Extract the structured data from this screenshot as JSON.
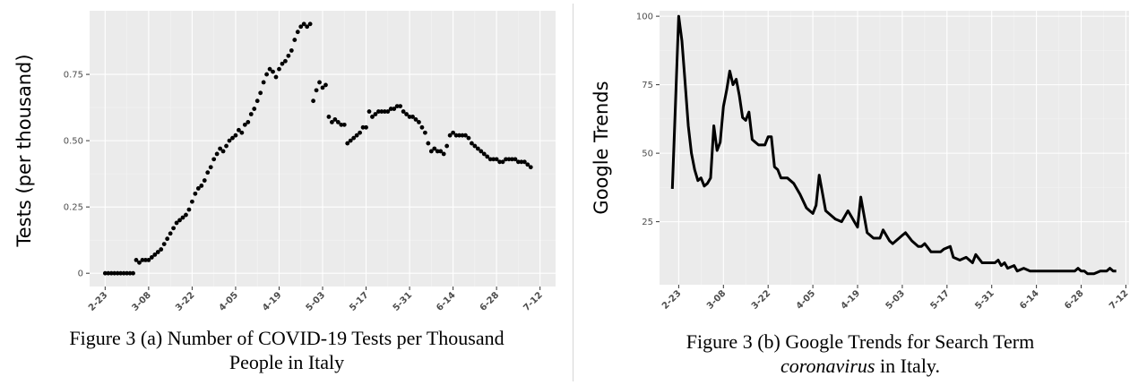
{
  "chart_data": [
    {
      "type": "scatter",
      "title": "",
      "xlabel": "",
      "ylabel": "Tests (per thousand)",
      "x_ticks": [
        "2-23",
        "3-08",
        "3-22",
        "4-05",
        "4-19",
        "5-03",
        "5-17",
        "5-31",
        "6-14",
        "6-28",
        "7-12"
      ],
      "y_ticks": [
        "0",
        "0.25",
        "0.50",
        "0.75"
      ],
      "ylim": [
        -0.05,
        0.99
      ],
      "grid": true,
      "series": [
        {
          "x": [
            "2-23",
            "2-24",
            "2-25",
            "2-26",
            "2-27",
            "2-28",
            "2-29",
            "3-01",
            "3-02",
            "3-03",
            "3-04",
            "3-05",
            "3-06",
            "3-07",
            "3-08",
            "3-09",
            "3-10",
            "3-11",
            "3-12",
            "3-13",
            "3-14",
            "3-15",
            "3-16",
            "3-17",
            "3-18",
            "3-19",
            "3-20",
            "3-21",
            "3-22",
            "3-23",
            "3-24",
            "3-25",
            "3-26",
            "3-27",
            "3-28",
            "3-29",
            "3-30",
            "3-31",
            "4-01",
            "4-02",
            "4-03",
            "4-04",
            "4-05",
            "4-06",
            "4-07",
            "4-08",
            "4-09",
            "4-10",
            "4-11",
            "4-12",
            "4-13",
            "4-14",
            "4-15",
            "4-16",
            "4-17",
            "4-18",
            "4-19",
            "4-20",
            "4-21",
            "4-22",
            "4-23",
            "4-24",
            "4-25",
            "4-26",
            "4-27",
            "4-28",
            "4-29",
            "4-30",
            "5-01",
            "5-02",
            "5-03",
            "5-04",
            "5-05",
            "5-06",
            "5-07",
            "5-08",
            "5-09",
            "5-10",
            "5-11",
            "5-12",
            "5-13",
            "5-14",
            "5-15",
            "5-16",
            "5-17",
            "5-18",
            "5-19",
            "5-20",
            "5-21",
            "5-22",
            "5-23",
            "5-24",
            "5-25",
            "5-26",
            "5-27",
            "5-28",
            "5-29",
            "5-30",
            "5-31",
            "6-01",
            "6-02",
            "6-03",
            "6-04",
            "6-05",
            "6-06",
            "6-07",
            "6-08",
            "6-09",
            "6-10",
            "6-11",
            "6-12",
            "6-13",
            "6-14",
            "6-15",
            "6-16",
            "6-17",
            "6-18",
            "6-19",
            "6-20",
            "6-21",
            "6-22",
            "6-23",
            "6-24",
            "6-25",
            "6-26",
            "6-27",
            "6-28",
            "6-29",
            "6-30",
            "7-01",
            "7-02",
            "7-03",
            "7-04",
            "7-05",
            "7-06",
            "7-07",
            "7-08",
            "7-09"
          ],
          "y": [
            0,
            0,
            0,
            0,
            0,
            0,
            0,
            0,
            0,
            0,
            0.05,
            0.04,
            0.05,
            0.05,
            0.05,
            0.06,
            0.07,
            0.08,
            0.09,
            0.11,
            0.13,
            0.15,
            0.17,
            0.19,
            0.2,
            0.21,
            0.22,
            0.24,
            0.27,
            0.3,
            0.32,
            0.33,
            0.35,
            0.38,
            0.4,
            0.43,
            0.45,
            0.47,
            0.46,
            0.48,
            0.5,
            0.51,
            0.52,
            0.54,
            0.53,
            0.56,
            0.57,
            0.6,
            0.62,
            0.65,
            0.68,
            0.72,
            0.75,
            0.77,
            0.76,
            0.74,
            0.77,
            0.79,
            0.8,
            0.82,
            0.84,
            0.88,
            0.91,
            0.93,
            0.94,
            0.93,
            0.94,
            0.65,
            0.69,
            0.72,
            0.7,
            0.71,
            0.59,
            0.57,
            0.58,
            0.57,
            0.56,
            0.56,
            0.49,
            0.5,
            0.51,
            0.52,
            0.53,
            0.55,
            0.55,
            0.61,
            0.59,
            0.6,
            0.61,
            0.61,
            0.61,
            0.61,
            0.62,
            0.62,
            0.63,
            0.63,
            0.61,
            0.6,
            0.59,
            0.59,
            0.58,
            0.57,
            0.55,
            0.53,
            0.49,
            0.46,
            0.47,
            0.46,
            0.46,
            0.45,
            0.48,
            0.52,
            0.53,
            0.52,
            0.52,
            0.52,
            0.52,
            0.51,
            0.49,
            0.48,
            0.47,
            0.46,
            0.45,
            0.44,
            0.43,
            0.43,
            0.43,
            0.42,
            0.42,
            0.43,
            0.43,
            0.43,
            0.43,
            0.42,
            0.42,
            0.42,
            0.41,
            0.4
          ]
        }
      ]
    },
    {
      "type": "line",
      "title": "",
      "xlabel": "",
      "ylabel": "Google Trends",
      "x_ticks": [
        "2-23",
        "3-08",
        "3-22",
        "4-05",
        "4-19",
        "5-03",
        "5-17",
        "5-31",
        "6-14",
        "6-28",
        "7-12"
      ],
      "y_ticks": [
        "25",
        "50",
        "75",
        "100"
      ],
      "ylim": [
        2,
        102
      ],
      "grid": true,
      "series": [
        {
          "x": [
            "2-21",
            "2-23",
            "2-24",
            "2-25",
            "2-26",
            "2-27",
            "2-28",
            "2-29",
            "3-01",
            "3-02",
            "3-03",
            "3-04",
            "3-05",
            "3-06",
            "3-07",
            "3-08",
            "3-09",
            "3-10",
            "3-11",
            "3-12",
            "3-13",
            "3-14",
            "3-15",
            "3-16",
            "3-17",
            "3-18",
            "3-19",
            "3-20",
            "3-21",
            "3-22",
            "3-23",
            "3-24",
            "3-25",
            "3-26",
            "3-28",
            "3-30",
            "4-01",
            "4-03",
            "4-04",
            "4-05",
            "4-06",
            "4-07",
            "4-09",
            "4-11",
            "4-12",
            "4-14",
            "4-16",
            "4-17",
            "4-18",
            "4-19",
            "4-20",
            "4-22",
            "4-24",
            "4-25",
            "4-26",
            "4-27",
            "4-29",
            "4-30",
            "5-02",
            "5-03",
            "5-04",
            "5-06",
            "5-08",
            "5-09",
            "5-10",
            "5-12",
            "5-14",
            "5-15",
            "5-16",
            "5-18",
            "5-19",
            "5-21",
            "5-23",
            "5-25",
            "5-26",
            "5-28",
            "5-30",
            "6-01",
            "6-02",
            "6-03",
            "6-04",
            "6-05",
            "6-07",
            "6-08",
            "6-10",
            "6-12",
            "6-14",
            "6-16",
            "6-19",
            "6-21",
            "6-24",
            "6-26",
            "6-27",
            "6-28",
            "6-29",
            "6-30",
            "7-02",
            "7-04",
            "7-06",
            "7-07",
            "7-08",
            "7-09"
          ],
          "y": [
            37,
            100,
            91,
            76,
            60,
            50,
            44,
            40,
            41,
            38,
            39,
            41,
            60,
            51,
            54,
            67,
            73,
            80,
            75,
            77,
            71,
            63,
            62,
            65,
            55,
            54,
            53,
            53,
            53,
            56,
            56,
            45,
            44,
            41,
            41,
            39,
            35,
            30,
            29,
            28,
            31,
            42,
            29,
            27,
            26,
            25,
            29,
            27,
            25,
            23,
            34,
            21,
            19,
            19,
            19,
            22,
            18,
            17,
            19,
            20,
            21,
            18,
            16,
            16,
            17,
            14,
            14,
            14,
            15,
            16,
            12,
            11,
            12,
            10,
            13,
            10,
            10,
            10,
            11,
            9,
            10,
            8,
            9,
            7,
            8,
            7,
            7,
            7,
            7,
            7,
            7,
            7,
            8,
            7,
            7,
            6,
            6,
            7,
            7,
            8,
            7,
            7
          ]
        }
      ]
    }
  ],
  "captions": {
    "a_line1": "Figure 3 (a) Number of COVID-19 Tests per Thousand",
    "a_line2": "People in Italy",
    "b_line1": "Figure 3 (b) Google Trends for Search Term",
    "b_line2_italic": "coronavirus",
    "b_line2_rest": " in Italy."
  },
  "colors": {
    "panel_bg": "#ebebeb",
    "grid_major": "#ffffff",
    "mark": "#000000"
  }
}
